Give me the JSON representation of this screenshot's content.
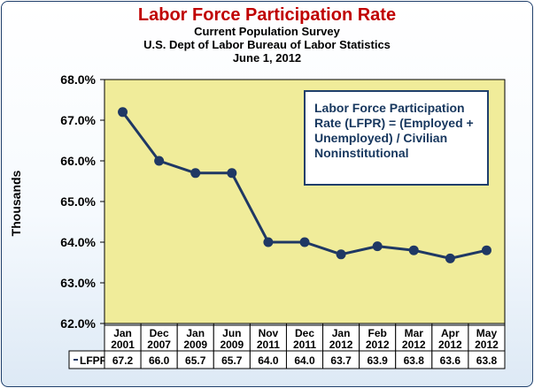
{
  "chart_data": {
    "type": "line",
    "title": "Labor Force Participation Rate",
    "subtitles": [
      "Current Population Survey",
      "U.S. Dept of Labor Bureau of Labor Statistics",
      "June 1, 2012"
    ],
    "ylabel": "Thousands",
    "ylim": [
      62.0,
      68.0
    ],
    "yticks": [
      "62.0%",
      "63.0%",
      "64.0%",
      "65.0%",
      "66.0%",
      "67.0%",
      "68.0%"
    ],
    "categories": [
      [
        "Jan",
        "2001"
      ],
      [
        "Dec",
        "2007"
      ],
      [
        "Jan",
        "2009"
      ],
      [
        "Jun",
        "2009"
      ],
      [
        "Nov",
        "2011"
      ],
      [
        "Dec",
        "2011"
      ],
      [
        "Jan",
        "2012"
      ],
      [
        "Feb",
        "2012"
      ],
      [
        "Mar",
        "2012"
      ],
      [
        "Apr",
        "2012"
      ],
      [
        "May",
        "2012"
      ]
    ],
    "series": [
      {
        "name": "LFPR",
        "values": [
          67.2,
          66.0,
          65.7,
          65.7,
          64.0,
          64.0,
          63.7,
          63.9,
          63.8,
          63.6,
          63.8
        ],
        "table_values": [
          "67.2",
          "66.0",
          "65.7",
          "65.7",
          "64.0",
          "64.0",
          "63.7",
          "63.9",
          "63.8",
          "63.6",
          "63.8"
        ]
      }
    ],
    "grid": false,
    "annotation": "Labor Force Participation Rate (LFPR) = (Employed + Unemployed) / Civilian Noninstitutional",
    "colors": {
      "plot_background": "#f0ec9a",
      "line": "#1f3864",
      "title": "#c00000",
      "annotation_text": "#17375e",
      "frame": "#1f3f6b"
    }
  }
}
